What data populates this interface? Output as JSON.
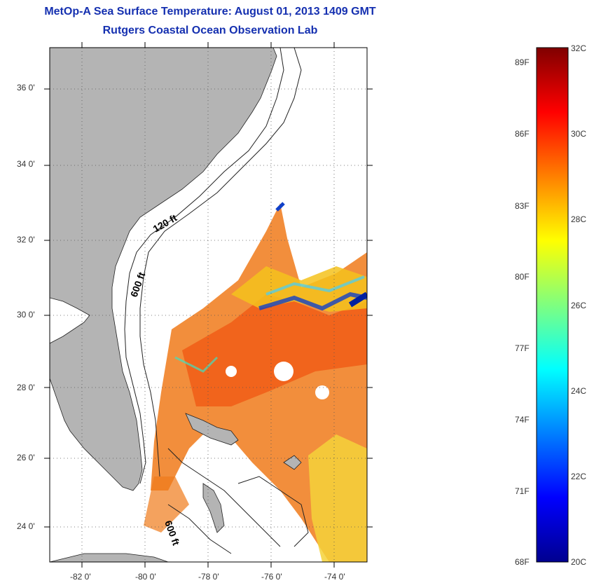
{
  "title": "MetOp-A Sea Surface Temperature:  August 01, 2013 1409 GMT",
  "subtitle": "Rutgers Coastal Ocean Observation Lab",
  "map": {
    "lat_range": [
      23.0,
      37.0
    ],
    "lon_range": [
      -83.0,
      -73.0
    ],
    "lat_ticks": [
      "36 0'",
      "34 0'",
      "32 0'",
      "30 0'",
      "28 0'",
      "26 0'",
      "24 0'"
    ],
    "lon_ticks": [
      "-82 0'",
      "-80 0'",
      "-78 0'",
      "-76 0'",
      "-74 0'"
    ],
    "contour_labels": [
      "120 ft",
      "600 ft",
      "600 ft"
    ],
    "land_color": "#b4b4b4"
  },
  "colorbar": {
    "celsius_labels": [
      "32C",
      "30C",
      "28C",
      "26C",
      "24C",
      "22C",
      "20C"
    ],
    "fahrenheit_labels": [
      "89F",
      "86F",
      "83F",
      "80F",
      "77F",
      "74F",
      "71F",
      "68F"
    ],
    "min_c": 20,
    "max_c": 32,
    "colormap": "jet"
  }
}
